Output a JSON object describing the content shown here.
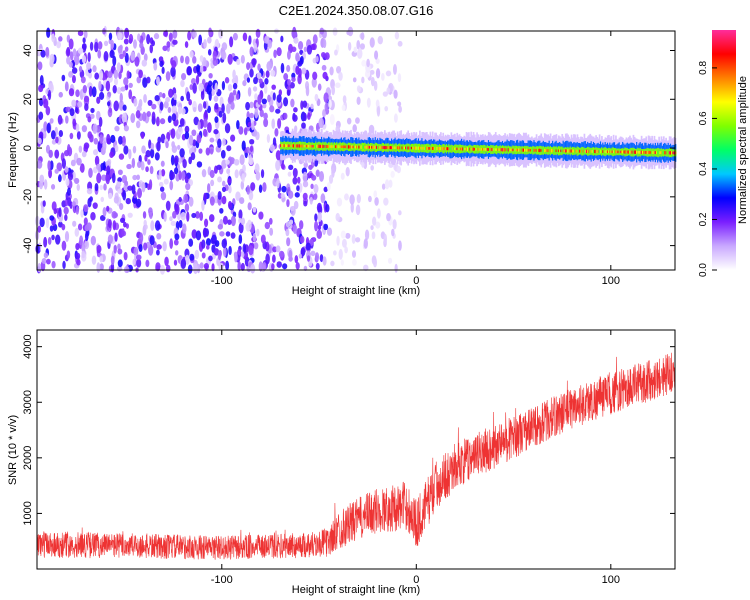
{
  "title": "C2E1.2024.350.08.07.G16",
  "chart_data": [
    {
      "type": "heatmap",
      "xlabel": "Height of straight line (km)",
      "ylabel": "Frequency (Hz)",
      "xlim": [
        -195,
        133
      ],
      "ylim": [
        -50,
        48
      ],
      "xticks": [
        -100,
        0,
        100
      ],
      "yticks": [
        -40,
        -20,
        0,
        20,
        40
      ],
      "x_tick_labels": [
        "-100",
        "0",
        "100"
      ],
      "y_tick_labels": [
        "-40",
        "-20",
        "0",
        "20",
        "40"
      ],
      "colorbar": {
        "label": "Normalized spectral amplitude",
        "range": [
          0,
          0.95
        ],
        "ticks": [
          0,
          0.2,
          0.4,
          0.6,
          0.8
        ],
        "tick_labels": [
          "0.0",
          "0.2",
          "0.4",
          "0.6",
          "0.8"
        ],
        "colors": [
          "#ffffff",
          "#c9a8ff",
          "#7a1fff",
          "#0000ff",
          "#00c8ff",
          "#00ff66",
          "#80ff00",
          "#ffff00",
          "#ff8000",
          "#ff0000",
          "#ff2d9b"
        ]
      },
      "features": [
        {
          "description_value": "diffuse noise region",
          "x_range": [
            -195,
            -45
          ],
          "level": 0.15
        },
        {
          "description_value": "sparse noise",
          "x_range": [
            -45,
            -8
          ],
          "level": 0.05
        },
        {
          "description_value": "signal band",
          "x_range": [
            -70,
            133
          ],
          "frequency_center": [
            1,
            -2
          ],
          "peak_level": 0.85
        }
      ]
    },
    {
      "type": "line",
      "xlabel": "Height of straight line (km)",
      "ylabel": "SNR (10 * v/v)",
      "xlim": [
        -195,
        133
      ],
      "ylim": [
        0,
        4300
      ],
      "xticks": [
        -100,
        0,
        100
      ],
      "yticks": [
        1000,
        2000,
        3000,
        4000
      ],
      "x_tick_labels": [
        "-100",
        "0",
        "100"
      ],
      "y_tick_labels": [
        "1000",
        "2000",
        "3000",
        "4000"
      ],
      "color": "#ee3333",
      "series": [
        {
          "x": [
            -195,
            -150,
            -100,
            -60,
            -45,
            -40,
            -30,
            -20,
            -10,
            -5,
            0,
            10,
            20,
            40,
            60,
            80,
            100,
            120,
            133
          ],
          "y": [
            450,
            420,
            380,
            420,
            480,
            700,
            900,
            1050,
            1100,
            1150,
            800,
            1500,
            1850,
            2200,
            2550,
            2900,
            3150,
            3400,
            3550
          ],
          "noise_amplitude": [
            250,
            230,
            220,
            230,
            260,
            350,
            380,
            420,
            420,
            450,
            450,
            450,
            420,
            400,
            380,
            380,
            380,
            380,
            380
          ]
        }
      ]
    }
  ]
}
